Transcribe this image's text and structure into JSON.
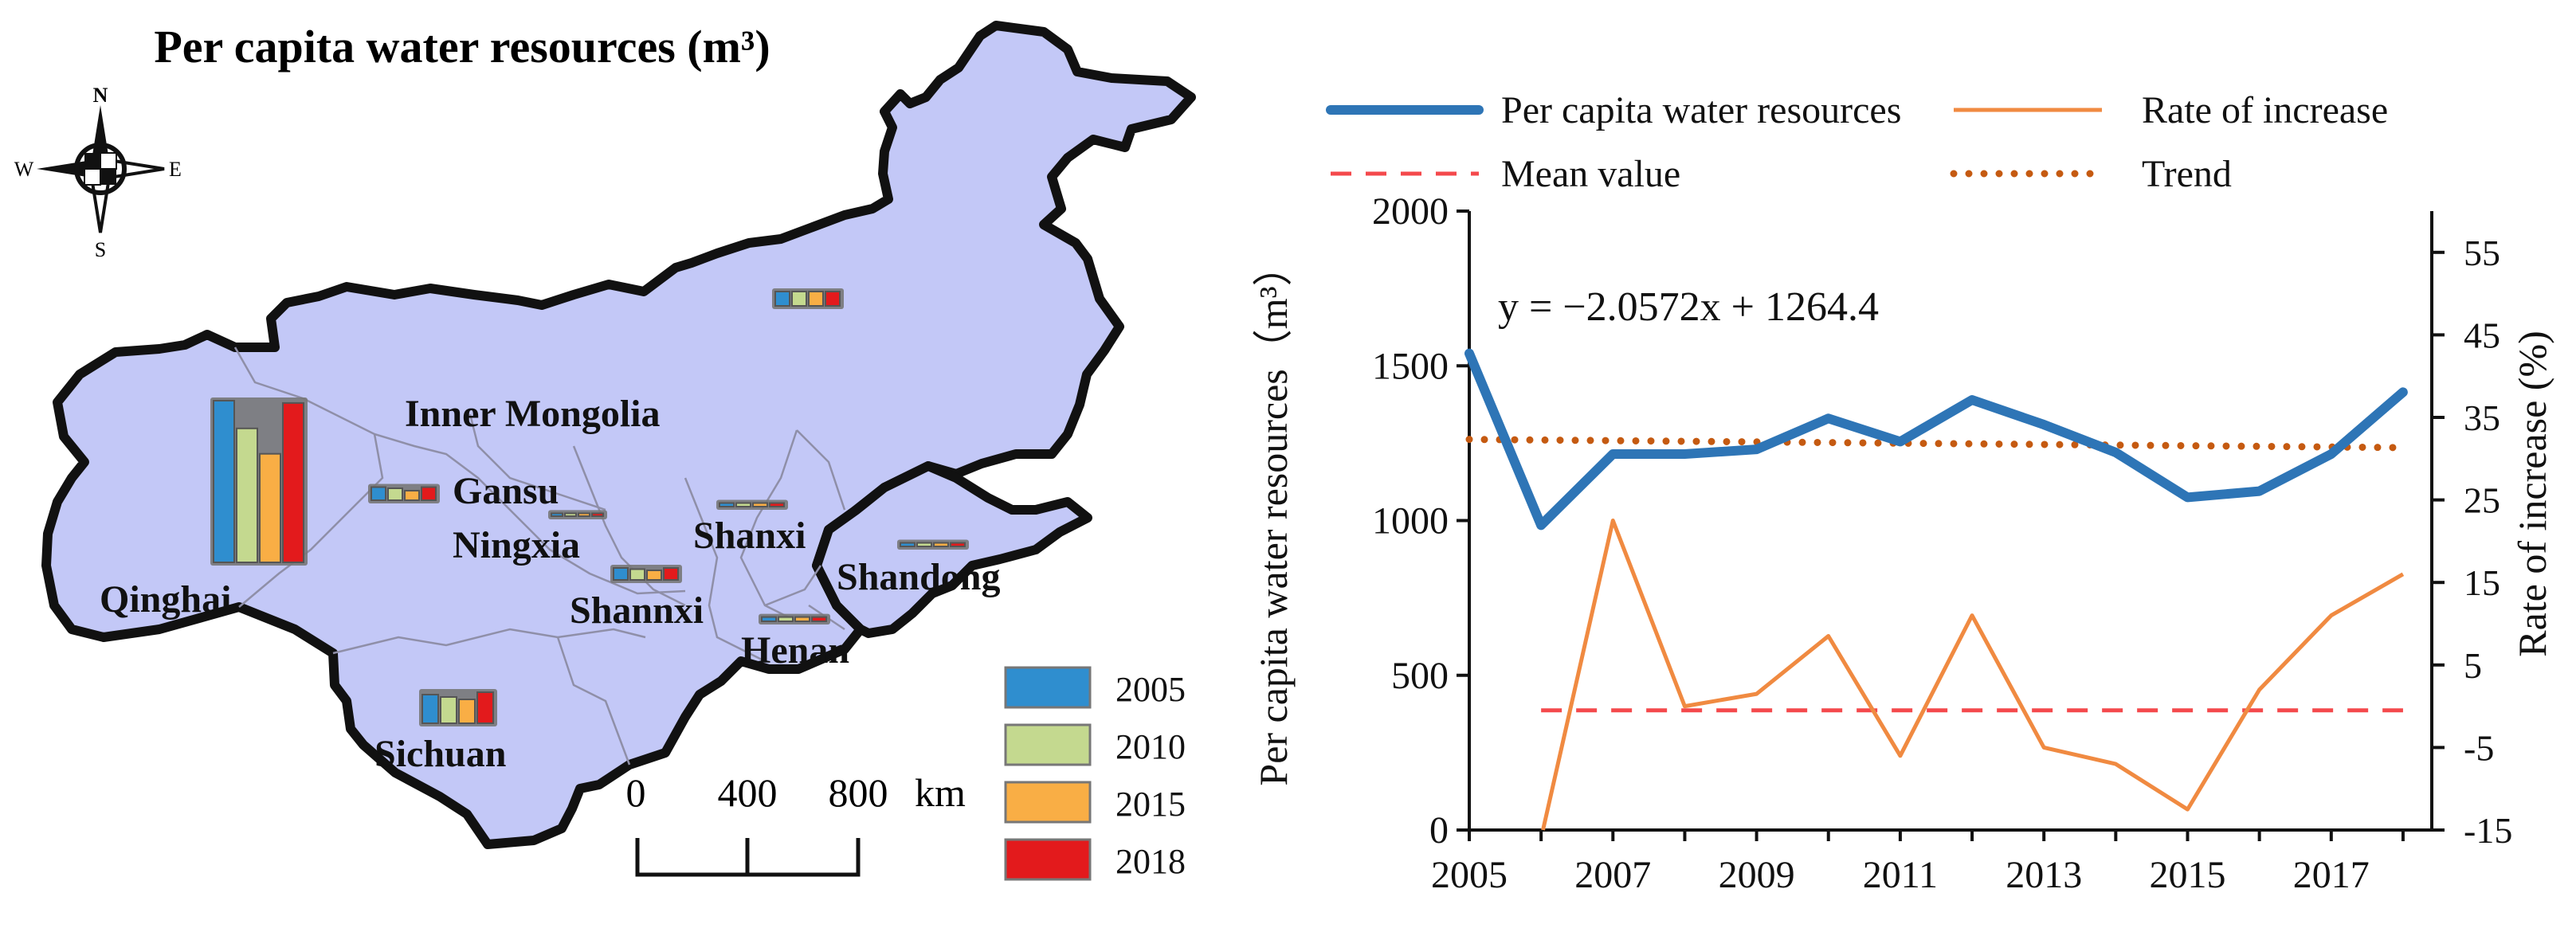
{
  "map": {
    "title": "Per capita water resources (m³)",
    "compass": {
      "n": "N",
      "s": "S",
      "e": "E",
      "w": "W"
    },
    "regions": [
      {
        "name": "Inner Mongolia",
        "values": [],
        "chart": null
      },
      {
        "name": "Gansu",
        "values": [],
        "chart": null
      },
      {
        "name": "Ningxia",
        "values": [],
        "chart": null
      },
      {
        "name": "Shanxi",
        "values": [],
        "chart": null
      },
      {
        "name": "Shandong",
        "values": [],
        "chart": null
      },
      {
        "name": "Qinghai",
        "values": [],
        "chart": null
      },
      {
        "name": "Shannxi",
        "values": [],
        "chart": null
      },
      {
        "name": "Henan",
        "values": [],
        "chart": null
      },
      {
        "name": "Sichuan",
        "values": [],
        "chart": null
      }
    ],
    "mini_charts": [
      {
        "region": "Inner Mongolia (east)",
        "values": [
          0.6,
          0.6,
          0.6,
          0.6
        ]
      },
      {
        "region": "Qinghai",
        "values": [
          7.0,
          5.8,
          4.7,
          6.9
        ]
      },
      {
        "region": "Gansu",
        "values": [
          0.55,
          0.5,
          0.4,
          0.55
        ]
      },
      {
        "region": "Ningxia",
        "values": [
          0.12,
          0.12,
          0.12,
          0.12
        ]
      },
      {
        "region": "Shanxi",
        "values": [
          0.15,
          0.15,
          0.15,
          0.15
        ]
      },
      {
        "region": "Shandong",
        "values": [
          0.15,
          0.15,
          0.15,
          0.15
        ]
      },
      {
        "region": "Shannxi",
        "values": [
          0.5,
          0.45,
          0.4,
          0.5
        ]
      },
      {
        "region": "Henan",
        "values": [
          0.18,
          0.18,
          0.18,
          0.18
        ]
      },
      {
        "region": "Sichuan",
        "values": [
          1.2,
          1.1,
          1.0,
          1.3
        ]
      }
    ],
    "legend": [
      {
        "label": "2005",
        "color": "#2f8ecf"
      },
      {
        "label": "2010",
        "color": "#c4d98f"
      },
      {
        "label": "2015",
        "color": "#f9ae45"
      },
      {
        "label": "2018",
        "color": "#e31a1c"
      }
    ],
    "scale": {
      "ticks": [
        "0",
        "400",
        "800"
      ],
      "unit": "km"
    },
    "colors": {
      "land": "#c3c8f7",
      "border": "#111111",
      "inner_border": "#9a9ab5"
    }
  },
  "chart_data": {
    "type": "line",
    "x": [
      2005,
      2006,
      2007,
      2008,
      2009,
      2010,
      2011,
      2012,
      2013,
      2014,
      2015,
      2016,
      2017,
      2018
    ],
    "series": [
      {
        "name": "Per capita water resources",
        "axis": "left",
        "style": "solid-thick",
        "color": "#2e75b6",
        "values": [
          1540,
          985,
          1215,
          1215,
          1230,
          1330,
          1255,
          1390,
          1310,
          1220,
          1075,
          1095,
          1215,
          1415
        ]
      },
      {
        "name": "Rate of increase",
        "axis": "right",
        "style": "solid-thin",
        "color": "#f08a41",
        "values": [
          null,
          -16,
          22.5,
          0,
          1.5,
          8.5,
          -6,
          11,
          -5,
          -7,
          -12.5,
          2,
          11,
          16
        ]
      },
      {
        "name": "Mean value",
        "axis": "right",
        "style": "dashed",
        "color": "#f4494c",
        "values": [
          null,
          -0.5,
          -0.5,
          -0.5,
          -0.5,
          -0.5,
          -0.5,
          -0.5,
          -0.5,
          -0.5,
          -0.5,
          -0.5,
          -0.5,
          -0.5
        ]
      },
      {
        "name": "Trend",
        "axis": "left",
        "style": "dotted",
        "color": "#c55a11",
        "values": [
          1262.3,
          1260.3,
          1258.2,
          1256.2,
          1254.1,
          1252.1,
          1250.0,
          1248.0,
          1245.9,
          1243.9,
          1241.8,
          1239.8,
          1237.7,
          1235.7
        ]
      }
    ],
    "equation": "y = −2.0572x + 1264.4",
    "ylabel": "Per capita water resources（m³）",
    "y2label": "Rate of increase (%)",
    "ylim": [
      0,
      2000
    ],
    "y2lim": [
      -15,
      60
    ],
    "yticks": [
      0,
      500,
      1000,
      1500,
      2000
    ],
    "y2ticks": [
      -15,
      -5,
      5,
      15,
      25,
      35,
      45,
      55
    ],
    "xticks": [
      2005,
      2007,
      2009,
      2011,
      2013,
      2015,
      2017
    ],
    "legend": [
      "Per capita water resources",
      "Rate of increase",
      "Mean value",
      "Trend"
    ]
  }
}
